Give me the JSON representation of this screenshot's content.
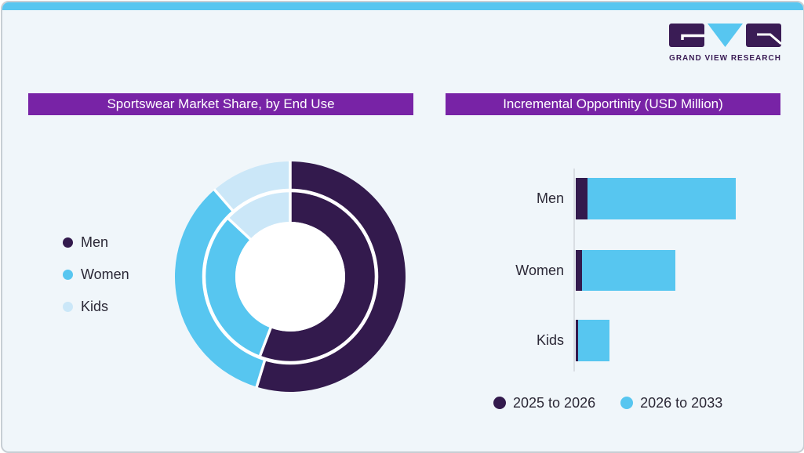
{
  "logo": {
    "text": "GRAND VIEW RESEARCH"
  },
  "colors": {
    "dark_purple": "#331a4d",
    "sky_blue": "#57c6f0",
    "pale_blue": "#cbe7f8",
    "title_purple": "#7823a6",
    "card_bg": "#f0f6fa",
    "card_border": "#c7ced4",
    "accent_bar": "#57c6f0",
    "text_dark": "#2b2836",
    "axis_gray": "#d9dee3",
    "logo_purple": "#3a1c55"
  },
  "chart_data": [
    {
      "type": "pie",
      "subtype": "double-ring-donut",
      "title": "Sportswear Market Share, by End Use",
      "categories": [
        "Men",
        "Women",
        "Kids"
      ],
      "colors": [
        "#331a4d",
        "#57c6f0",
        "#cbe7f8"
      ],
      "rings": [
        {
          "name": "outer",
          "values_pct": [
            54.7,
            33.9,
            11.4
          ]
        },
        {
          "name": "inner",
          "values_pct": [
            55.8,
            31.2,
            13.0
          ]
        }
      ],
      "start_angle": "12 o'clock, clockwise",
      "value_labels_visible": false,
      "legend_position": "left"
    },
    {
      "type": "bar",
      "orientation": "horizontal",
      "stacked": true,
      "title": "Incremental Opportinity (USD Million)",
      "categories": [
        "Men",
        "Women",
        "Kids"
      ],
      "series": [
        {
          "name": "2025 to 2026",
          "color": "#331a4d",
          "values": [
            15,
            8,
            3
          ]
        },
        {
          "name": "2026 to 2033",
          "color": "#57c6f0",
          "values": [
            189,
            119,
            40
          ]
        }
      ],
      "units": "relative length (no numeric axis shown)",
      "xlim": [
        0,
        210
      ],
      "value_axis_visible": false,
      "legend_position": "bottom"
    }
  ]
}
